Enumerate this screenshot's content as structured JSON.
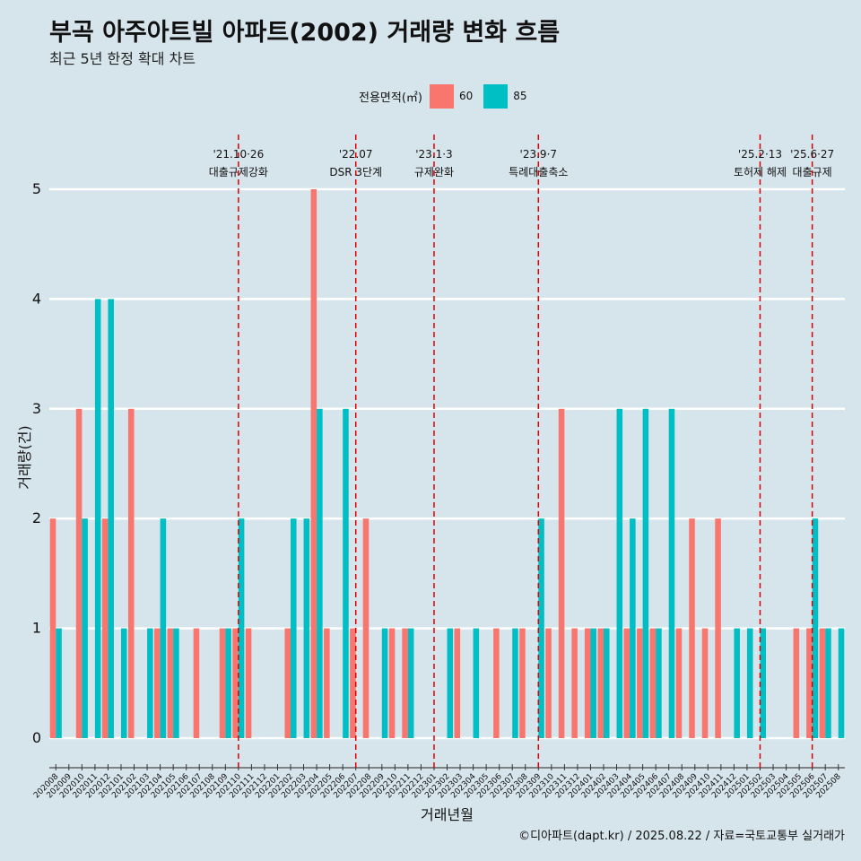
{
  "title": "부곡 아주아트빌 아파트(2002) 거래량 변화 흐름",
  "subtitle": "최근 5년 한정 확대 차트",
  "caption": "©디아파트(dapt.kr) / 2025.08.22 / 자료=국토교통부 실거래가",
  "legend": {
    "title": "전용면적(㎡)",
    "items": [
      {
        "label": "60",
        "color": "#f8766d"
      },
      {
        "label": "85",
        "color": "#00bfc4"
      }
    ]
  },
  "chart_data": {
    "type": "bar",
    "xlabel": "거래년월",
    "ylabel": "거래량(건)",
    "ylim": [
      0,
      5
    ],
    "yticks": [
      0,
      1,
      2,
      3,
      4,
      5
    ],
    "grid": true,
    "legend_position": "top",
    "categories": [
      "202008",
      "202009",
      "202010",
      "202011",
      "202012",
      "202101",
      "202102",
      "202103",
      "202104",
      "202105",
      "202106",
      "202107",
      "202108",
      "202109",
      "202110",
      "202111",
      "202112",
      "202201",
      "202202",
      "202203",
      "202204",
      "202205",
      "202206",
      "202207",
      "202208",
      "202209",
      "202210",
      "202211",
      "202212",
      "202301",
      "202302",
      "202303",
      "202304",
      "202305",
      "202306",
      "202307",
      "202308",
      "202309",
      "202310",
      "202311",
      "202312",
      "202401",
      "202402",
      "202403",
      "202404",
      "202405",
      "202406",
      "202407",
      "202408",
      "202409",
      "202410",
      "202411",
      "202412",
      "202501",
      "202502",
      "202503",
      "202504",
      "202505",
      "202506",
      "202507",
      "202508"
    ],
    "series": [
      {
        "name": "60",
        "color": "#f8766d",
        "values": [
          2,
          0,
          3,
          0,
          2,
          0,
          3,
          0,
          1,
          1,
          0,
          1,
          0,
          1,
          1,
          1,
          0,
          0,
          1,
          0,
          5,
          1,
          0,
          1,
          2,
          0,
          1,
          1,
          0,
          0,
          0,
          1,
          0,
          0,
          1,
          0,
          1,
          0,
          1,
          3,
          1,
          1,
          1,
          0,
          1,
          1,
          1,
          0,
          1,
          2,
          1,
          2,
          0,
          0,
          0,
          0,
          0,
          1,
          1,
          1,
          0
        ]
      },
      {
        "name": "85",
        "color": "#00bfc4",
        "values": [
          1,
          0,
          2,
          4,
          4,
          1,
          0,
          1,
          2,
          1,
          0,
          0,
          0,
          1,
          2,
          0,
          0,
          0,
          2,
          2,
          3,
          0,
          3,
          0,
          0,
          1,
          0,
          1,
          0,
          0,
          1,
          0,
          1,
          0,
          0,
          1,
          0,
          2,
          0,
          0,
          0,
          1,
          1,
          3,
          2,
          3,
          1,
          3,
          0,
          0,
          0,
          0,
          1,
          1,
          1,
          0,
          0,
          0,
          2,
          1,
          1
        ]
      }
    ],
    "annotations": [
      {
        "date": "'21.10·26",
        "label": "대출규제강화",
        "category": "202110"
      },
      {
        "date": "'22.07",
        "label": "DSR 3단계",
        "category": "202207"
      },
      {
        "date": "'23.1·3",
        "label": "규제완화",
        "category": "202301"
      },
      {
        "date": "'23.9·7",
        "label": "특례대출축소",
        "category": "202309"
      },
      {
        "date": "'25.2·13",
        "label": "토허제 해제",
        "category": "202502"
      },
      {
        "date": "'25.6·27",
        "label": "대출규제",
        "category": "202506"
      }
    ]
  }
}
